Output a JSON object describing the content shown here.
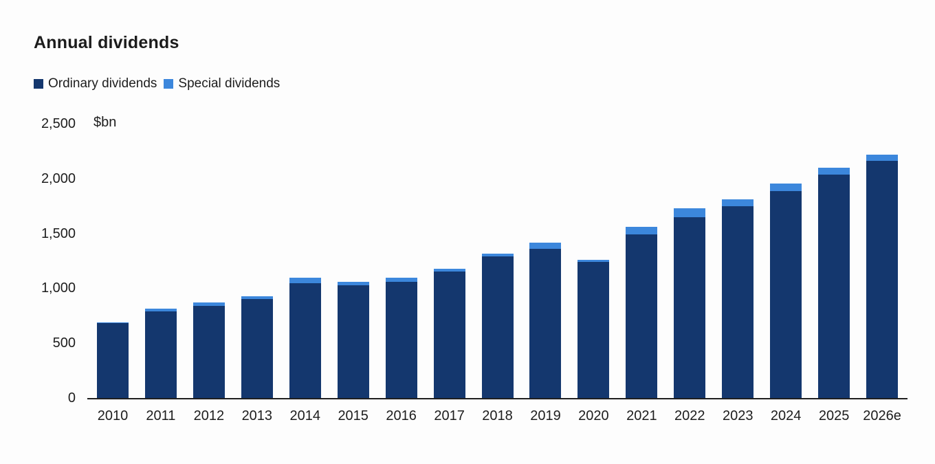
{
  "title": "Annual dividends",
  "unit_label": "$bn",
  "legend": {
    "items": [
      {
        "label": "Ordinary dividends",
        "color": "#14376e"
      },
      {
        "label": "Special dividends",
        "color": "#3c87dc"
      }
    ]
  },
  "chart_data": {
    "type": "bar",
    "stacked": true,
    "title": "Annual dividends",
    "ylabel": "$bn",
    "xlabel": "",
    "ylim": [
      0,
      2500
    ],
    "yticks": [
      0,
      500,
      1000,
      1500,
      2000,
      2500
    ],
    "ytick_labels": [
      "0",
      "500",
      "1,000",
      "1,500",
      "2,000",
      "2,500"
    ],
    "grid": false,
    "legend_position": "top-left",
    "categories": [
      "2010",
      "2011",
      "2012",
      "2013",
      "2014",
      "2015",
      "2016",
      "2017",
      "2018",
      "2019",
      "2020",
      "2021",
      "2022",
      "2023",
      "2024",
      "2025",
      "2026e"
    ],
    "series": [
      {
        "name": "Ordinary dividends",
        "color": "#14376e",
        "values": [
          680,
          790,
          840,
          905,
          1045,
          1030,
          1060,
          1150,
          1290,
          1360,
          1240,
          1490,
          1650,
          1745,
          1885,
          2035,
          2160
        ]
      },
      {
        "name": "Special dividends",
        "color": "#3c87dc",
        "values": [
          10,
          25,
          30,
          20,
          50,
          30,
          35,
          25,
          25,
          55,
          20,
          70,
          80,
          65,
          70,
          65,
          60
        ]
      }
    ]
  }
}
